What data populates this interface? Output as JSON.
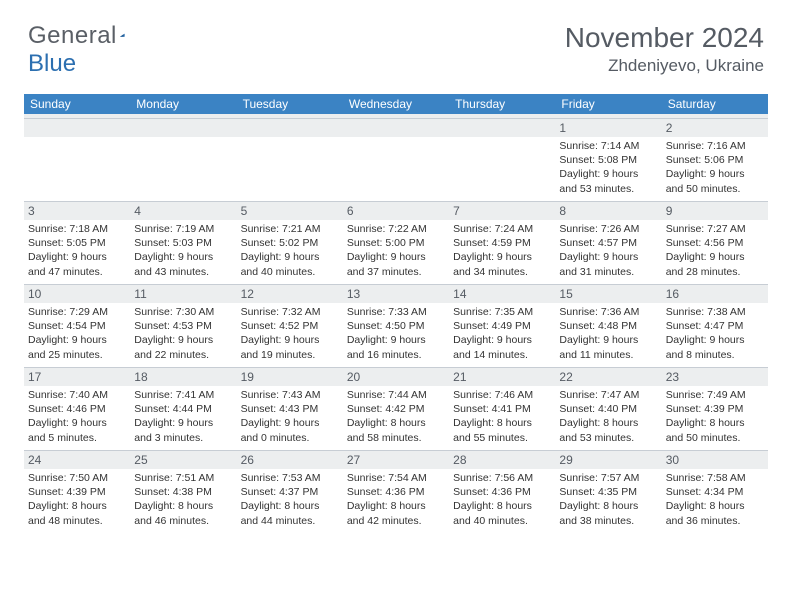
{
  "brand": {
    "name_part1": "General",
    "name_part2": "Blue"
  },
  "title": "November 2024",
  "location": "Zhdeniyevo, Ukraine",
  "colors": {
    "header_bg": "#3b83c4",
    "header_text": "#ffffff",
    "daynum_bg": "#eceeef",
    "text": "#333333",
    "logo_grey": "#5a5f66",
    "logo_blue": "#2c6fb0",
    "border": "#c7cdd4"
  },
  "weekdays": [
    "Sunday",
    "Monday",
    "Tuesday",
    "Wednesday",
    "Thursday",
    "Friday",
    "Saturday"
  ],
  "weeks": [
    [
      null,
      null,
      null,
      null,
      null,
      {
        "n": "1",
        "sunrise": "Sunrise: 7:14 AM",
        "sunset": "Sunset: 5:08 PM",
        "day1": "Daylight: 9 hours",
        "day2": "and 53 minutes."
      },
      {
        "n": "2",
        "sunrise": "Sunrise: 7:16 AM",
        "sunset": "Sunset: 5:06 PM",
        "day1": "Daylight: 9 hours",
        "day2": "and 50 minutes."
      }
    ],
    [
      {
        "n": "3",
        "sunrise": "Sunrise: 7:18 AM",
        "sunset": "Sunset: 5:05 PM",
        "day1": "Daylight: 9 hours",
        "day2": "and 47 minutes."
      },
      {
        "n": "4",
        "sunrise": "Sunrise: 7:19 AM",
        "sunset": "Sunset: 5:03 PM",
        "day1": "Daylight: 9 hours",
        "day2": "and 43 minutes."
      },
      {
        "n": "5",
        "sunrise": "Sunrise: 7:21 AM",
        "sunset": "Sunset: 5:02 PM",
        "day1": "Daylight: 9 hours",
        "day2": "and 40 minutes."
      },
      {
        "n": "6",
        "sunrise": "Sunrise: 7:22 AM",
        "sunset": "Sunset: 5:00 PM",
        "day1": "Daylight: 9 hours",
        "day2": "and 37 minutes."
      },
      {
        "n": "7",
        "sunrise": "Sunrise: 7:24 AM",
        "sunset": "Sunset: 4:59 PM",
        "day1": "Daylight: 9 hours",
        "day2": "and 34 minutes."
      },
      {
        "n": "8",
        "sunrise": "Sunrise: 7:26 AM",
        "sunset": "Sunset: 4:57 PM",
        "day1": "Daylight: 9 hours",
        "day2": "and 31 minutes."
      },
      {
        "n": "9",
        "sunrise": "Sunrise: 7:27 AM",
        "sunset": "Sunset: 4:56 PM",
        "day1": "Daylight: 9 hours",
        "day2": "and 28 minutes."
      }
    ],
    [
      {
        "n": "10",
        "sunrise": "Sunrise: 7:29 AM",
        "sunset": "Sunset: 4:54 PM",
        "day1": "Daylight: 9 hours",
        "day2": "and 25 minutes."
      },
      {
        "n": "11",
        "sunrise": "Sunrise: 7:30 AM",
        "sunset": "Sunset: 4:53 PM",
        "day1": "Daylight: 9 hours",
        "day2": "and 22 minutes."
      },
      {
        "n": "12",
        "sunrise": "Sunrise: 7:32 AM",
        "sunset": "Sunset: 4:52 PM",
        "day1": "Daylight: 9 hours",
        "day2": "and 19 minutes."
      },
      {
        "n": "13",
        "sunrise": "Sunrise: 7:33 AM",
        "sunset": "Sunset: 4:50 PM",
        "day1": "Daylight: 9 hours",
        "day2": "and 16 minutes."
      },
      {
        "n": "14",
        "sunrise": "Sunrise: 7:35 AM",
        "sunset": "Sunset: 4:49 PM",
        "day1": "Daylight: 9 hours",
        "day2": "and 14 minutes."
      },
      {
        "n": "15",
        "sunrise": "Sunrise: 7:36 AM",
        "sunset": "Sunset: 4:48 PM",
        "day1": "Daylight: 9 hours",
        "day2": "and 11 minutes."
      },
      {
        "n": "16",
        "sunrise": "Sunrise: 7:38 AM",
        "sunset": "Sunset: 4:47 PM",
        "day1": "Daylight: 9 hours",
        "day2": "and 8 minutes."
      }
    ],
    [
      {
        "n": "17",
        "sunrise": "Sunrise: 7:40 AM",
        "sunset": "Sunset: 4:46 PM",
        "day1": "Daylight: 9 hours",
        "day2": "and 5 minutes."
      },
      {
        "n": "18",
        "sunrise": "Sunrise: 7:41 AM",
        "sunset": "Sunset: 4:44 PM",
        "day1": "Daylight: 9 hours",
        "day2": "and 3 minutes."
      },
      {
        "n": "19",
        "sunrise": "Sunrise: 7:43 AM",
        "sunset": "Sunset: 4:43 PM",
        "day1": "Daylight: 9 hours",
        "day2": "and 0 minutes."
      },
      {
        "n": "20",
        "sunrise": "Sunrise: 7:44 AM",
        "sunset": "Sunset: 4:42 PM",
        "day1": "Daylight: 8 hours",
        "day2": "and 58 minutes."
      },
      {
        "n": "21",
        "sunrise": "Sunrise: 7:46 AM",
        "sunset": "Sunset: 4:41 PM",
        "day1": "Daylight: 8 hours",
        "day2": "and 55 minutes."
      },
      {
        "n": "22",
        "sunrise": "Sunrise: 7:47 AM",
        "sunset": "Sunset: 4:40 PM",
        "day1": "Daylight: 8 hours",
        "day2": "and 53 minutes."
      },
      {
        "n": "23",
        "sunrise": "Sunrise: 7:49 AM",
        "sunset": "Sunset: 4:39 PM",
        "day1": "Daylight: 8 hours",
        "day2": "and 50 minutes."
      }
    ],
    [
      {
        "n": "24",
        "sunrise": "Sunrise: 7:50 AM",
        "sunset": "Sunset: 4:39 PM",
        "day1": "Daylight: 8 hours",
        "day2": "and 48 minutes."
      },
      {
        "n": "25",
        "sunrise": "Sunrise: 7:51 AM",
        "sunset": "Sunset: 4:38 PM",
        "day1": "Daylight: 8 hours",
        "day2": "and 46 minutes."
      },
      {
        "n": "26",
        "sunrise": "Sunrise: 7:53 AM",
        "sunset": "Sunset: 4:37 PM",
        "day1": "Daylight: 8 hours",
        "day2": "and 44 minutes."
      },
      {
        "n": "27",
        "sunrise": "Sunrise: 7:54 AM",
        "sunset": "Sunset: 4:36 PM",
        "day1": "Daylight: 8 hours",
        "day2": "and 42 minutes."
      },
      {
        "n": "28",
        "sunrise": "Sunrise: 7:56 AM",
        "sunset": "Sunset: 4:36 PM",
        "day1": "Daylight: 8 hours",
        "day2": "and 40 minutes."
      },
      {
        "n": "29",
        "sunrise": "Sunrise: 7:57 AM",
        "sunset": "Sunset: 4:35 PM",
        "day1": "Daylight: 8 hours",
        "day2": "and 38 minutes."
      },
      {
        "n": "30",
        "sunrise": "Sunrise: 7:58 AM",
        "sunset": "Sunset: 4:34 PM",
        "day1": "Daylight: 8 hours",
        "day2": "and 36 minutes."
      }
    ]
  ]
}
